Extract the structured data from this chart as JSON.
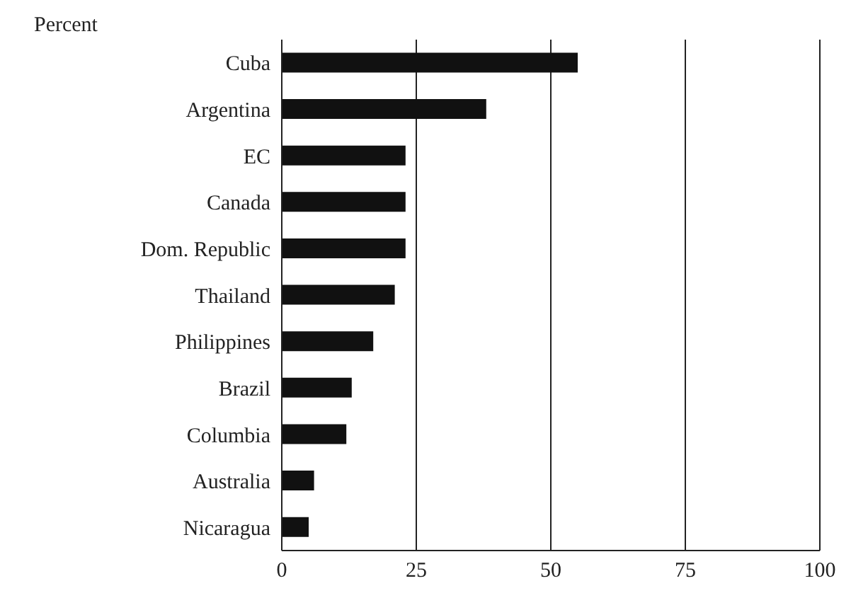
{
  "chart_data": {
    "type": "bar",
    "orientation": "horizontal",
    "xlabel": "Percent",
    "categories": [
      "Cuba",
      "Argentina",
      "EC",
      "Canada",
      "Dom. Republic",
      "Thailand",
      "Philippines",
      "Brazil",
      "Columbia",
      "Australia",
      "Nicaragua"
    ],
    "values": [
      55,
      38,
      23,
      23,
      23,
      21,
      17,
      13,
      12,
      6,
      5
    ],
    "color": "#111111",
    "xlim": [
      0,
      100
    ],
    "xticks": [
      0,
      25,
      50,
      75,
      100
    ],
    "grid": "x"
  }
}
